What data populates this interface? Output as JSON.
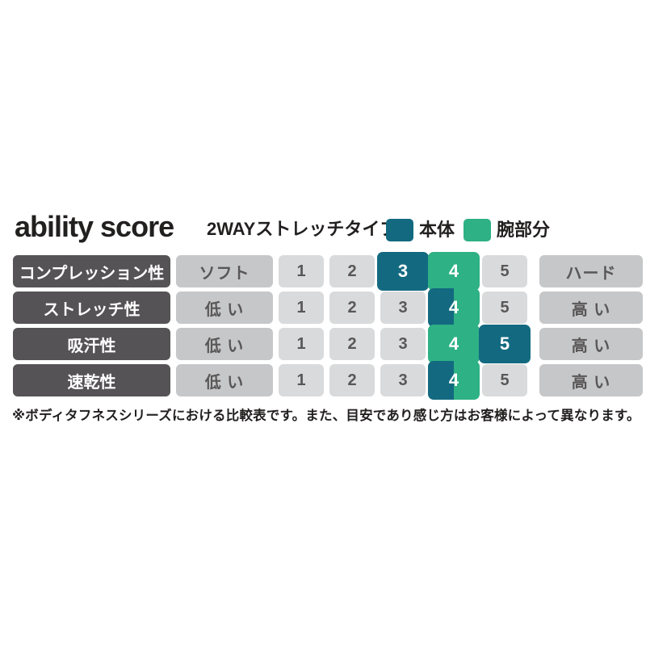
{
  "chart_data": {
    "type": "table",
    "title": "ability score",
    "subtitle": "2WAYストレッチタイプ",
    "legend": [
      {
        "label": "本体",
        "color": "#136a80"
      },
      {
        "label": "腕部分",
        "color": "#2eb185"
      }
    ],
    "scale": [
      "1",
      "2",
      "3",
      "4",
      "5"
    ],
    "scale_range": [
      1,
      5
    ],
    "rows": [
      {
        "attribute": "コンプレッション性",
        "low_label": "ソフト",
        "high_label": "ハード",
        "body_score": 3,
        "arm_score": 4
      },
      {
        "attribute": "ストレッチ性",
        "low_label": "低 い",
        "high_label": "高 い",
        "body_score": 4,
        "arm_score": 4
      },
      {
        "attribute": "吸汗性",
        "low_label": "低 い",
        "high_label": "高 い",
        "body_score": 5,
        "arm_score": 4
      },
      {
        "attribute": "速乾性",
        "low_label": "低 い",
        "high_label": "高 い",
        "body_score": 4,
        "arm_score": 4
      }
    ],
    "footnote": "※ボディタフネスシリーズにおける比較表です。また、目安であり感じ方はお客様によって異なります。"
  },
  "colors": {
    "body_teal": "#136a80",
    "arm_green": "#2eb185",
    "label_dark_gray": "#555356",
    "qualifier_gray": "#c6c7c8",
    "number_cell_gray": "#d9dadb",
    "text_dark": "#221f1f",
    "cell_text_gray": "#595757"
  }
}
